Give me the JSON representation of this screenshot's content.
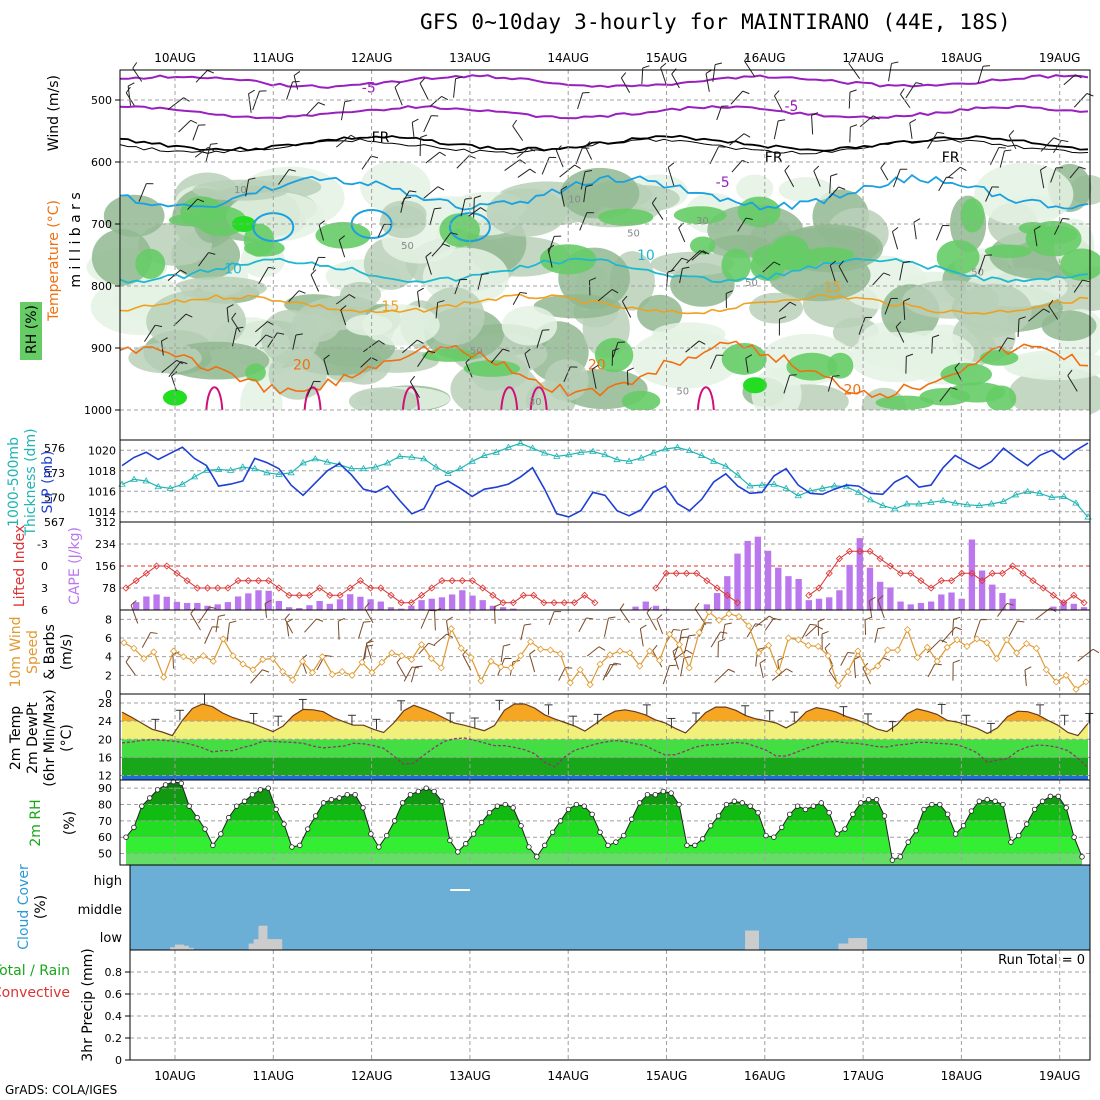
{
  "title": "GFS 0~10day 3-hourly for MAINTIRANO (44E, 18S)",
  "credit": "GrADS: COLA/IGES",
  "colors": {
    "temp_neg": "#9a1fbf",
    "temp_fr": "#000000",
    "temp_5": "#1ba0e0",
    "temp_10": "#20b8d0",
    "temp_15": "#f0a020",
    "temp_20": "#f07010",
    "temp_25": "#d0107a",
    "rh_light": "#e4f2e4",
    "rh_mid": "#b8d0b8",
    "rh_dark": "#90b890",
    "rh_green": "#66cc66",
    "rh_bright": "#22dd22",
    "slp": "#1f3fd4",
    "thickness": "#20b4b4",
    "cape": "#bb77ee",
    "lifted": "#dd3333",
    "wind": "#e09a30",
    "barb": "#7a4a2a",
    "sky": "#6baed6",
    "cloud_low": "#cccccc"
  },
  "chart_data": [
    {
      "type": "heatmap",
      "name": "upper_air",
      "xlabel": "",
      "ylabel": "m i l l i b a r s",
      "side_labels": [
        "Wind (m/s)",
        "Temperature (°C)",
        "RH (%)"
      ],
      "x_ticks": [
        "10AUG",
        "11AUG",
        "12AUG",
        "13AUG",
        "14AUG",
        "15AUG",
        "16AUG",
        "17AUG",
        "18AUG",
        "19AUG"
      ],
      "y_ticks": [
        "500",
        "600",
        "700",
        "800",
        "900",
        "1000"
      ],
      "ylim": [
        1000,
        450
      ],
      "contour_labels": [
        {
          "text": "-5",
          "day": 1.9,
          "level": 488
        },
        {
          "text": "-5",
          "day": 6.2,
          "level": 518
        },
        {
          "text": "FR",
          "day": 2.0,
          "level": 568
        },
        {
          "text": "FR",
          "day": 6.0,
          "level": 600
        },
        {
          "text": "FR",
          "day": 7.8,
          "level": 600
        },
        {
          "text": "10",
          "day": 0.6,
          "level": 650
        },
        {
          "text": "-5",
          "day": 5.5,
          "level": 640
        },
        {
          "text": "10",
          "day": 0.5,
          "level": 780
        },
        {
          "text": "10",
          "day": 4.7,
          "level": 758
        },
        {
          "text": "15",
          "day": 2.1,
          "level": 840
        },
        {
          "text": "15",
          "day": 6.6,
          "level": 810
        },
        {
          "text": "20",
          "day": 1.2,
          "level": 935
        },
        {
          "text": "20",
          "day": 4.2,
          "level": 935
        },
        {
          "text": "20",
          "day": 6.8,
          "level": 975
        },
        {
          "text": "10",
          "day": 4.0,
          "level": 665
        },
        {
          "text": "30",
          "day": 5.3,
          "level": 700
        },
        {
          "text": "50",
          "day": 2.3,
          "level": 740
        },
        {
          "text": "50",
          "day": 4.6,
          "level": 720
        },
        {
          "text": "50",
          "day": 5.8,
          "level": 800
        },
        {
          "text": "50",
          "day": 8.1,
          "level": 783
        },
        {
          "text": "50",
          "day": 3.0,
          "level": 910
        },
        {
          "text": "50",
          "day": 5.1,
          "level": 975
        },
        {
          "text": "30",
          "day": 3.6,
          "level": 992
        }
      ]
    },
    {
      "type": "line",
      "name": "pressure",
      "left_label": [
        "1000-500mb",
        "Thickness (dm)"
      ],
      "right_label": "SLP (mb)",
      "left_ticks": [
        "576",
        "573",
        "570",
        "567"
      ],
      "right_ticks": [
        "1020",
        "1018",
        "1016",
        "1014"
      ],
      "ylim_left": [
        567,
        577
      ],
      "ylim_right": [
        1013,
        1021
      ],
      "series": [
        {
          "key": "thickness",
          "units": "dm",
          "values": [
            571.6,
            572.2,
            572.0,
            571.3,
            571.1,
            571.6,
            572.5,
            573.3,
            573.4,
            573.3,
            573.7,
            573.5,
            573.0,
            572.8,
            573.0,
            574.2,
            574.7,
            574.3,
            574.0,
            573.5,
            573.5,
            573.7,
            574.2,
            575.0,
            574.9,
            574.7,
            573.7,
            572.9,
            573.5,
            574.4,
            575.1,
            575.5,
            576.1,
            576.6,
            576.0,
            575.4,
            575.0,
            575.2,
            575.5,
            575.6,
            575.2,
            574.6,
            574.4,
            574.8,
            575.4,
            575.9,
            576.1,
            575.7,
            575.1,
            574.4,
            573.8,
            572.7,
            571.4,
            571.5,
            571.6,
            571.1,
            570.2,
            570.8,
            571.1,
            571.4,
            571.3,
            570.6,
            569.7,
            569.0,
            568.6,
            569.2,
            569.2,
            569.4,
            569.6,
            569.3,
            569.1,
            569.0,
            569.2,
            569.5,
            570.3,
            570.7,
            570.5,
            570.0,
            570.1,
            569.3,
            567.6
          ]
        },
        {
          "key": "slp",
          "units": "mb",
          "values": [
            1018.5,
            1019.3,
            1019.8,
            1019.1,
            1019.7,
            1020.3,
            1019.2,
            1018.5,
            1016.5,
            1016.7,
            1017.0,
            1019.2,
            1018.8,
            1018.2,
            1016.6,
            1015.6,
            1016.8,
            1018.0,
            1018.7,
            1017.6,
            1016.2,
            1015.9,
            1016.5,
            1015.1,
            1013.8,
            1014.3,
            1016.5,
            1017.0,
            1016.3,
            1015.5,
            1016.2,
            1016.4,
            1016.7,
            1017.4,
            1018.3,
            1016.2,
            1013.8,
            1013.5,
            1014.1,
            1015.9,
            1015.6,
            1014.1,
            1013.6,
            1014.2,
            1015.9,
            1016.5,
            1014.8,
            1014.1,
            1015.2,
            1016.9,
            1017.7,
            1016.5,
            1015.8,
            1015.9,
            1017.5,
            1018.2,
            1016.6,
            1015.8,
            1015.7,
            1016.2,
            1016.6,
            1016.5,
            1015.8,
            1015.7,
            1016.9,
            1017.5,
            1016.4,
            1016.6,
            1018.3,
            1019.5,
            1018.8,
            1018.2,
            1018.9,
            1020.2,
            1019.3,
            1018.5,
            1019.5,
            1020.0,
            1019.1,
            1020.0,
            1020.7
          ]
        }
      ]
    },
    {
      "type": "bar",
      "name": "instability",
      "left_label": "Lifted Index",
      "right_label": "CAPE (J/kg)",
      "left_ticks": [
        "-3",
        "0",
        "3",
        "6"
      ],
      "right_ticks": [
        "312",
        "234",
        "156",
        "78"
      ],
      "ylim_li": [
        6,
        -6
      ],
      "ylim_cape": [
        0,
        312
      ],
      "cape": [
        2,
        28,
        48,
        55,
        47,
        29,
        25,
        25,
        15,
        20,
        28,
        48,
        59,
        70,
        68,
        32,
        10,
        7,
        17,
        32,
        22,
        38,
        56,
        47,
        38,
        30,
        10,
        5,
        15,
        35,
        40,
        45,
        55,
        70,
        51,
        35,
        15,
        10,
        5,
        0,
        0,
        0,
        0,
        0,
        0,
        0,
        0,
        0,
        0,
        0,
        12,
        30,
        15,
        4,
        0,
        0,
        0,
        20,
        60,
        120,
        200,
        245,
        260,
        210,
        150,
        120,
        110,
        35,
        40,
        45,
        70,
        160,
        255,
        150,
        100,
        80,
        30,
        20,
        25,
        30,
        55,
        62,
        40,
        250,
        140,
        90,
        60,
        40,
        0,
        0,
        0,
        12,
        30,
        22,
        10
      ],
      "lifted_index": [
        3,
        2,
        1,
        0,
        0,
        1,
        2,
        3,
        3,
        3,
        3,
        2,
        2,
        2,
        2,
        3,
        4,
        4,
        4,
        3,
        4,
        4,
        3,
        2,
        3,
        3,
        4,
        5,
        5,
        4,
        3,
        2,
        2,
        2,
        2,
        3,
        4,
        5,
        5,
        4,
        4,
        5,
        5,
        5,
        5,
        4,
        5,
        6,
        6,
        6,
        6,
        6,
        3,
        1,
        1,
        1,
        1,
        2,
        3,
        4,
        5,
        6,
        6,
        6,
        6,
        6,
        6,
        4,
        3,
        1,
        -1,
        -2,
        -2,
        -2,
        -1,
        0,
        1,
        1,
        2,
        3,
        2,
        2,
        1,
        1,
        2,
        1,
        1,
        0,
        1,
        2,
        3,
        4,
        5,
        4,
        5
      ]
    },
    {
      "type": "line",
      "name": "wind10m",
      "left_label": [
        "10m Wind",
        "Speed",
        "& Barbs"
      ],
      "units": "(m/s)",
      "y_ticks": [
        "8",
        "6",
        "4",
        "2",
        "0"
      ],
      "ylim": [
        0,
        9
      ],
      "values": [
        5.5,
        4.9,
        3.8,
        4.5,
        1.8,
        4.6,
        4.0,
        3.6,
        4.1,
        3.5,
        5.9,
        4.1,
        3.2,
        2.6,
        3.7,
        3.8,
        2.4,
        1.5,
        3.5,
        2.3,
        4.0,
        2.1,
        2.4,
        2.0,
        3.4,
        2.3,
        3.4,
        4.4,
        4.1,
        3.7,
        5.3,
        3.8,
        2.8,
        7.0,
        4.9,
        3.9,
        1.4,
        3.5,
        2.9,
        2.8,
        4.1,
        5.6,
        4.8,
        4.7,
        4.3,
        1.2,
        2.6,
        1.0,
        3.2,
        4.2,
        4.6,
        4.4,
        3.0,
        4.6,
        3.6,
        6.4,
        5.3,
        2.8,
        6.6,
        8.8,
        7.9,
        8.6,
        8.3,
        7.3,
        4.4,
        5.2,
        2.4,
        6.0,
        5.8,
        5.2,
        5.1,
        4.1,
        0.9,
        2.4,
        4.6,
        2.4,
        3.0,
        4.7,
        4.7,
        6.9,
        3.9,
        5.0,
        3.5,
        5.0,
        5.8,
        5.1,
        5.9,
        5.5,
        3.8,
        5.8,
        4.4,
        5.4,
        4.9,
        2.6,
        1.3,
        2.0,
        0.5,
        1.3
      ]
    },
    {
      "type": "area",
      "name": "temperature2m",
      "left_label": [
        "2m Temp",
        "2m DewPt",
        "(6hr Min/Max)"
      ],
      "units": "(°C)",
      "y_ticks": [
        "28",
        "24",
        "20",
        "16",
        "12"
      ],
      "ylim": [
        11,
        30
      ],
      "temp": [
        26.0,
        24.8,
        23.5,
        22.2,
        21.6,
        20.8,
        24.2,
        26.8,
        27.8,
        27.2,
        25.8,
        24.8,
        24.1,
        23.5,
        22.6,
        21.7,
        22.9,
        25.2,
        26.6,
        26.5,
        26.1,
        24.8,
        23.9,
        23.1,
        23.1,
        22.2,
        21.5,
        23.6,
        26.3,
        27.5,
        26.7,
        25.8,
        24.7,
        23.6,
        23.1,
        22.5,
        21.9,
        23.0,
        26.4,
        27.8,
        27.8,
        26.9,
        25.4,
        24.5,
        23.7,
        22.9,
        21.8,
        23.3,
        25.0,
        26.2,
        26.5,
        26.1,
        25.4,
        24.3,
        23.6,
        22.4,
        21.4,
        23.6,
        25.9,
        27.1,
        27.1,
        26.4,
        25.2,
        24.5,
        24.1,
        23.6,
        22.5,
        23.8,
        26.1,
        27.0,
        26.6,
        26.0,
        25.0,
        24.3,
        23.4,
        22.3,
        21.7,
        23.2,
        25.6,
        26.7,
        26.2,
        25.5,
        24.2,
        23.8,
        23.1,
        22.4,
        21.3,
        22.5,
        25.0,
        26.2,
        26.1,
        25.4,
        24.2,
        23.1,
        21.5,
        20.8,
        23.5
      ],
      "dewpt": [
        19.2,
        19.4,
        19.8,
        19.9,
        19.8,
        19.6,
        19.3,
        18.8,
        18.1,
        17.2,
        17.5,
        17.5,
        18.2,
        18.7,
        19.6,
        19.5,
        19.4,
        19.3,
        19.1,
        18.5,
        18.1,
        18.3,
        18.5,
        19.1,
        19.0,
        18.6,
        18.0,
        16.3,
        14.5,
        14.7,
        16.5,
        18.1,
        19.5,
        20.1,
        20.3,
        19.8,
        19.2,
        18.6,
        18.6,
        18.2,
        17.7,
        16.8,
        14.9,
        13.9,
        16.1,
        17.6,
        18.2,
        18.9,
        19.4,
        19.7,
        19.5,
        19.0,
        18.6,
        17.5,
        16.5,
        16.6,
        17.4,
        18.3,
        18.7,
        18.8,
        19.0,
        19.3,
        19.1,
        18.4,
        17.6,
        16.3,
        16.3,
        17.1,
        18.0,
        18.7,
        19.4,
        19.5,
        19.2,
        19.1,
        18.8,
        18.4,
        18.3,
        18.7,
        18.9,
        19.3,
        19.3,
        19.1,
        19.0,
        18.8,
        18.0,
        17.0,
        14.9,
        15.4,
        15.7,
        17.4,
        18.3,
        18.7,
        18.6,
        18.2,
        17.5,
        15.8,
        13.7
      ]
    },
    {
      "type": "area",
      "name": "rh2m",
      "left_label": "2m RH",
      "units": "(%)",
      "y_ticks": [
        "90",
        "80",
        "70",
        "60",
        "50"
      ],
      "ylim": [
        43,
        95
      ],
      "values": [
        60,
        66,
        79,
        84,
        89,
        92,
        94,
        93,
        79,
        72,
        65,
        55,
        62,
        72,
        79,
        82,
        86,
        89,
        90,
        77,
        68,
        54,
        55,
        65,
        73,
        81,
        83,
        84,
        86,
        86,
        78,
        62,
        54,
        61,
        70,
        81,
        86,
        88,
        90,
        88,
        82,
        58,
        51,
        56,
        62,
        69,
        75,
        79,
        80,
        78,
        67,
        54,
        48,
        55,
        63,
        70,
        77,
        80,
        79,
        74,
        63,
        55,
        57,
        61,
        71,
        81,
        86,
        86,
        88,
        87,
        80,
        55,
        55,
        59,
        67,
        73,
        80,
        82,
        81,
        79,
        75,
        61,
        60,
        66,
        74,
        79,
        77,
        79,
        81,
        75,
        62,
        65,
        74,
        81,
        83,
        83,
        73,
        46,
        48,
        57,
        64,
        77,
        80,
        80,
        74,
        62,
        67,
        76,
        82,
        83,
        82,
        80,
        57,
        61,
        68,
        77,
        82,
        85,
        85,
        78,
        60,
        48
      ]
    },
    {
      "type": "table",
      "name": "cloud_cover",
      "left_label": "Cloud Cover",
      "units": "(%)",
      "levels": [
        "high",
        "middle",
        "low"
      ],
      "low_cloud_days": [
        0.0,
        0.05,
        0.1,
        0.15,
        0.8,
        0.85,
        0.9,
        0.95,
        1.0,
        1.05,
        5.85,
        5.9,
        6.8,
        6.85,
        6.9,
        6.95,
        7.0
      ],
      "low_cloud_values": [
        5,
        10,
        8,
        4,
        12,
        20,
        45,
        20,
        20,
        20,
        36,
        36,
        12,
        12,
        22,
        22,
        22
      ],
      "mid_cloud_segment": [
        2.8,
        3.0
      ]
    },
    {
      "type": "line",
      "name": "precip",
      "left_label": [
        "Total / Rain",
        "Convective"
      ],
      "units": "3hr Precip (mm)",
      "y_ticks": [
        "0.8",
        "0.6",
        "0.4",
        "0.2",
        "0"
      ],
      "ylim": [
        0,
        1
      ],
      "run_total_label": "Run Total = 0",
      "values": [
        0,
        0,
        0,
        0,
        0,
        0,
        0,
        0,
        0,
        0
      ]
    }
  ]
}
